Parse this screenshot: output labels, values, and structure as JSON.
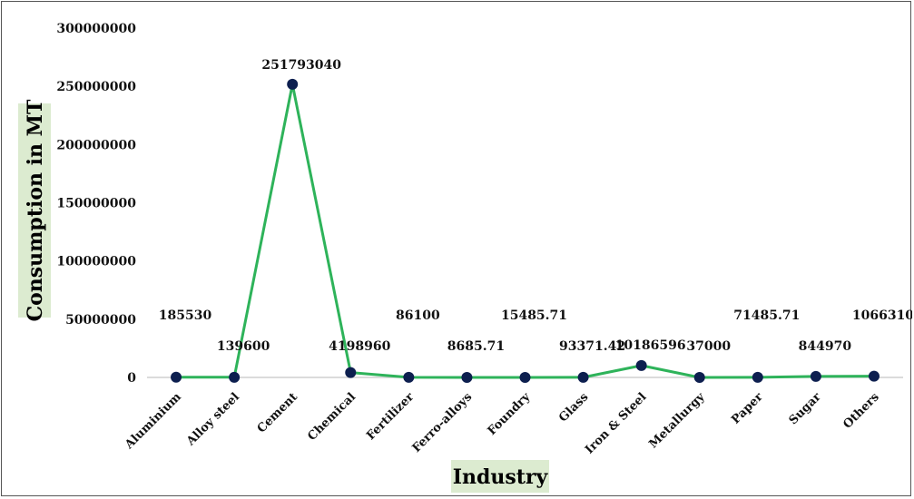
{
  "chart_data": {
    "type": "line",
    "xlabel": "Industry",
    "ylabel": "Consumption in MT",
    "ylim": [
      0,
      300000000
    ],
    "yticks": [
      "0",
      "50000000",
      "100000000",
      "150000000",
      "200000000",
      "250000000",
      "300000000"
    ],
    "grid": false,
    "categories": [
      "Aluminium",
      "Alloy steel",
      "Cement",
      "Chemical",
      "Fertilizer",
      "Ferro-alloys",
      "Foundry",
      "Glass",
      "Iron & Steel",
      "Metallurgy",
      "Paper",
      "Sugar",
      "Others"
    ],
    "values": [
      185530,
      139600,
      251793040,
      4198960,
      86100,
      8685.71,
      15485.71,
      93371.42,
      10186596,
      37000,
      71485.71,
      844970,
      1066310
    ],
    "data_labels": [
      "185530",
      "139600",
      "251793040",
      "4198960",
      "86100",
      "8685.71",
      "15485.71",
      "93371.42",
      "10186596",
      "37000",
      "71485.71",
      "844970",
      "1066310"
    ],
    "colors": {
      "line": "#2eb35a",
      "marker": "#0d1f4f",
      "axis_title_bg": "#dcebd0",
      "baseline": "#cfcfcf"
    }
  }
}
